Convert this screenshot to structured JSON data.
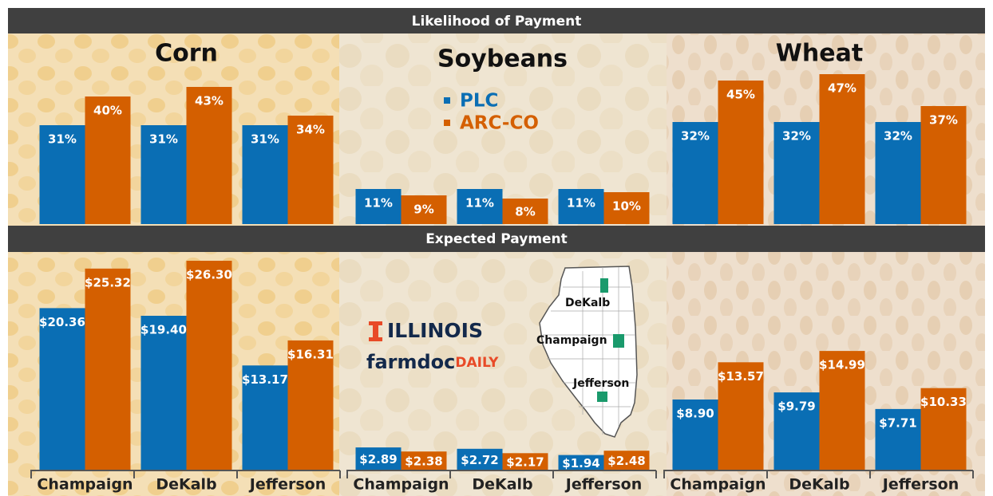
{
  "headers": [
    "Likelihood of Payment",
    "Expected Payment"
  ],
  "logo": {
    "university": "ILLINOIS",
    "brand_main": "farmdoc",
    "brand_accent": "DAILY"
  },
  "map": {
    "labels": [
      "DeKalb",
      "Champaign",
      "Jefferson"
    ]
  },
  "chart_data": [
    {
      "type": "bar",
      "title": "Corn",
      "ylim": [
        0,
        60
      ],
      "series": [
        {
          "color": "#0a6eb4",
          "values": [
            31,
            31,
            31
          ],
          "value_labels": [
            "31%",
            "31%",
            "31%"
          ]
        },
        {
          "color": "#d45f00",
          "values": [
            40,
            43,
            34
          ],
          "value_labels": [
            "40%",
            "43%",
            "34%"
          ]
        }
      ]
    },
    {
      "type": "bar",
      "title": "Soybeans",
      "ylim": [
        0,
        60
      ],
      "series": [
        {
          "name": "PLC",
          "color": "#0a6eb4",
          "values": [
            11,
            11,
            11
          ],
          "value_labels": [
            "11%",
            "11%",
            "11%"
          ]
        },
        {
          "name": "ARC-CO",
          "color": "#d45f00",
          "values": [
            9,
            8,
            10
          ],
          "value_labels": [
            "9%",
            "8%",
            "10%"
          ]
        }
      ]
    },
    {
      "type": "bar",
      "title": "Wheat",
      "ylim": [
        0,
        60
      ],
      "series": [
        {
          "color": "#0a6eb4",
          "values": [
            32,
            32,
            32
          ],
          "value_labels": [
            "32%",
            "32%",
            "32%"
          ]
        },
        {
          "color": "#d45f00",
          "values": [
            45,
            47,
            37
          ],
          "value_labels": [
            "45%",
            "47%",
            "37%"
          ]
        }
      ]
    },
    {
      "type": "bar",
      "categories": [
        "Champaign",
        "DeKalb",
        "Jefferson"
      ],
      "ylim": [
        0,
        30
      ],
      "series": [
        {
          "color": "#0a6eb4",
          "values": [
            20.36,
            19.4,
            13.17
          ],
          "value_labels": [
            "$20.36",
            "$19.40",
            "$13.17"
          ]
        },
        {
          "color": "#d45f00",
          "values": [
            25.32,
            26.3,
            16.31
          ],
          "value_labels": [
            "$25.32",
            "$26.30",
            "$16.31"
          ]
        }
      ]
    },
    {
      "type": "bar",
      "categories": [
        "Champaign",
        "DeKalb",
        "Jefferson"
      ],
      "ylim": [
        0,
        30
      ],
      "series": [
        {
          "color": "#0a6eb4",
          "values": [
            2.89,
            2.72,
            1.94
          ],
          "value_labels": [
            "$2.89",
            "$2.72",
            "$1.94"
          ]
        },
        {
          "color": "#d45f00",
          "values": [
            2.38,
            2.17,
            2.48
          ],
          "value_labels": [
            "$2.38",
            "$2.17",
            "$2.48"
          ]
        }
      ]
    },
    {
      "type": "bar",
      "categories": [
        "Champaign",
        "DeKalb",
        "Jefferson"
      ],
      "ylim": [
        0,
        30
      ],
      "series": [
        {
          "color": "#0a6eb4",
          "values": [
            8.9,
            9.79,
            7.71
          ],
          "value_labels": [
            "$8.90",
            "$9.79",
            "$7.71"
          ]
        },
        {
          "color": "#d45f00",
          "values": [
            13.57,
            14.99,
            10.33
          ],
          "value_labels": [
            "$13.57",
            "$14.99",
            "$10.33"
          ]
        }
      ]
    }
  ]
}
